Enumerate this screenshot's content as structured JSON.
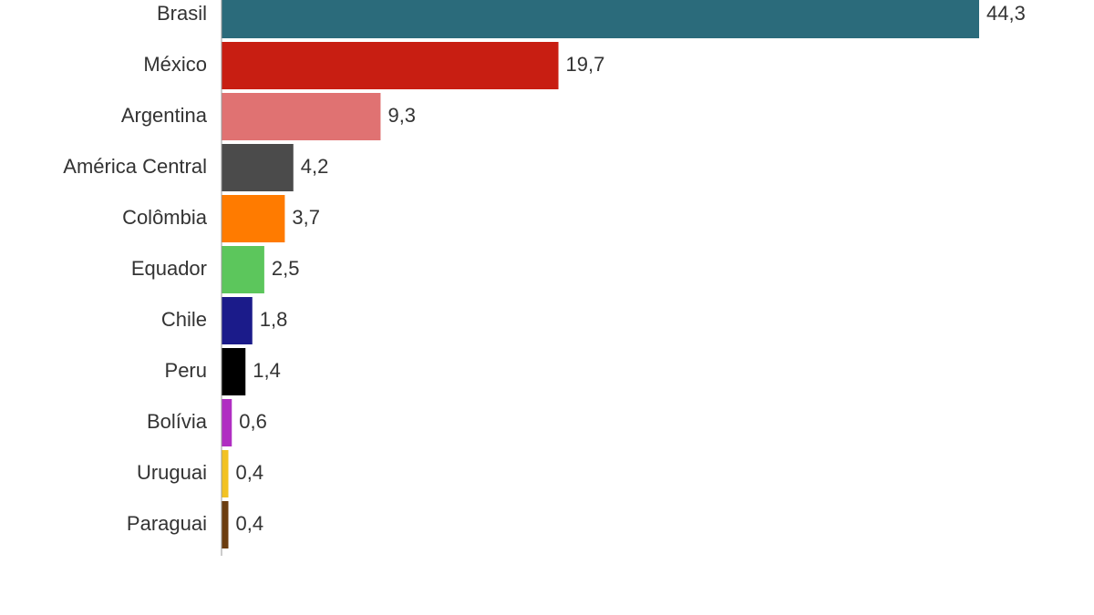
{
  "chart_data": {
    "type": "bar",
    "orientation": "horizontal",
    "categories": [
      "Brasil",
      "México",
      "Argentina",
      "América Central",
      "Colômbia",
      "Equador",
      "Chile",
      "Peru",
      "Bolívia",
      "Uruguai",
      "Paraguai"
    ],
    "values": [
      44.3,
      19.7,
      9.3,
      4.2,
      3.7,
      2.5,
      1.8,
      1.4,
      0.6,
      0.4,
      0.4
    ],
    "value_labels": [
      "44,3",
      "19,7",
      "9,3",
      "4,2",
      "3,7",
      "2,5",
      "1,8",
      "1,4",
      "0,6",
      "0,4",
      "0,4"
    ],
    "colors": [
      "#2b6b7b",
      "#c81e12",
      "#e07272",
      "#4b4b4b",
      "#ff7b00",
      "#5cc65c",
      "#1b1b8a",
      "#000000",
      "#b02ec2",
      "#f2c224",
      "#6b3d10"
    ]
  }
}
